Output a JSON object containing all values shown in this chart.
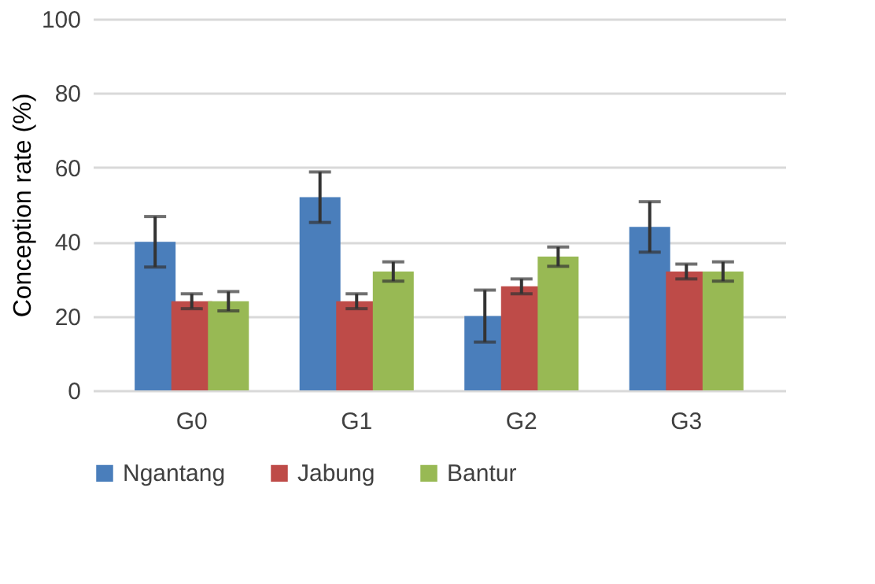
{
  "chart_data": {
    "type": "bar",
    "ylabel": "Conception rate (%)",
    "categories": [
      "G0",
      "G1",
      "G2",
      "G3"
    ],
    "series": [
      {
        "name": "Ngantang",
        "color": "#4a7ebb",
        "values": [
          40,
          52,
          20,
          44
        ],
        "errors": [
          6.8,
          6.8,
          7,
          6.8
        ]
      },
      {
        "name": "Jabung",
        "color": "#be4b48",
        "values": [
          24,
          24,
          28,
          32
        ],
        "errors": [
          2,
          2,
          2,
          2
        ]
      },
      {
        "name": "Bantur",
        "color": "#98b954",
        "values": [
          24,
          32,
          36,
          32
        ],
        "errors": [
          2.6,
          2.6,
          2.6,
          2.6
        ]
      }
    ],
    "ylim": [
      0,
      100
    ],
    "yticks": [
      0,
      20,
      40,
      60,
      80,
      100
    ],
    "grid": "y",
    "legend": "bottom"
  }
}
